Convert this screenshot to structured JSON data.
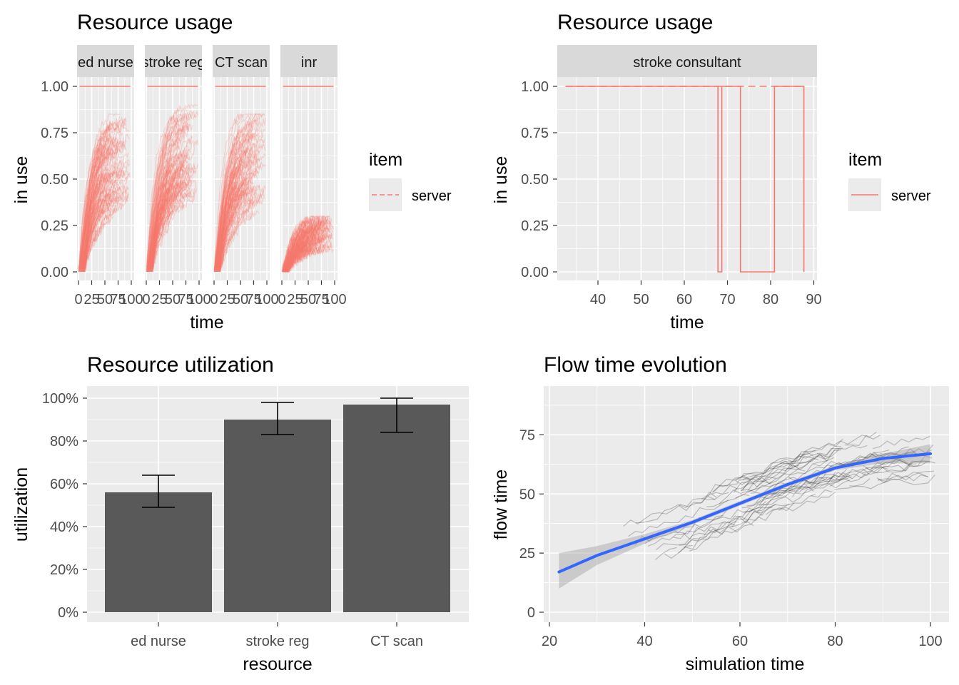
{
  "chart_data": [
    {
      "type": "line",
      "title": "Resource usage",
      "xlabel": "time",
      "ylabel": "in use",
      "xlim": [
        0,
        100
      ],
      "ylim": [
        0,
        1
      ],
      "yticks": [
        "0.00",
        "0.25",
        "0.50",
        "0.75",
        "1.00"
      ],
      "xticks": [
        "0",
        "25",
        "50",
        "75",
        "100"
      ],
      "facets": [
        {
          "name": "ed nurse",
          "capacity": 1,
          "peak": 0.85
        },
        {
          "name": "stroke reg",
          "capacity": 1,
          "peak": 0.9
        },
        {
          "name": "CT scan",
          "capacity": 1,
          "peak": 0.85
        },
        {
          "name": "inr",
          "capacity": 1,
          "peak": 0.3
        }
      ],
      "legend": {
        "title": "item",
        "entries": [
          "server"
        ],
        "position": "right"
      },
      "color": "#F8766D"
    },
    {
      "type": "line",
      "title": "Resource usage",
      "xlabel": "time",
      "ylabel": "in use",
      "xlim": [
        32,
        90
      ],
      "ylim": [
        0,
        1
      ],
      "yticks": [
        "0.00",
        "0.25",
        "0.50",
        "0.75",
        "1.00"
      ],
      "xticks": [
        "40",
        "50",
        "60",
        "70",
        "80",
        "90"
      ],
      "facets": [
        {
          "name": "stroke consultant"
        }
      ],
      "series": [
        {
          "name": "server",
          "x": [
            32.5,
            67.8,
            67.8,
            68.7,
            68.7,
            73.0,
            73.0,
            80.9,
            80.9,
            87.7,
            87.7
          ],
          "y": [
            1,
            1,
            0,
            0,
            1,
            1,
            0,
            0,
            1,
            1,
            0
          ]
        }
      ],
      "legend": {
        "title": "item",
        "entries": [
          "server"
        ],
        "position": "right"
      },
      "color": "#F8766D"
    },
    {
      "type": "bar",
      "title": "Resource utilization",
      "xlabel": "resource",
      "ylabel": "utilization",
      "categories": [
        "ed nurse",
        "stroke reg",
        "CT scan"
      ],
      "values": [
        0.56,
        0.9,
        0.97
      ],
      "err_low": [
        0.49,
        0.83,
        0.84
      ],
      "err_high": [
        0.64,
        0.98,
        1.0
      ],
      "ylim": [
        0,
        1
      ],
      "yticks": [
        "0%",
        "20%",
        "40%",
        "60%",
        "80%",
        "100%"
      ],
      "color": "#595959"
    },
    {
      "type": "line",
      "title": "Flow time evolution",
      "xlabel": "simulation time",
      "ylabel": "flow time",
      "xlim": [
        20,
        100
      ],
      "ylim": [
        0,
        90
      ],
      "xticks": [
        "20",
        "40",
        "60",
        "80",
        "100"
      ],
      "yticks": [
        "0",
        "25",
        "50",
        "75"
      ],
      "smooth": {
        "x": [
          22,
          30,
          40,
          50,
          60,
          70,
          80,
          90,
          100
        ],
        "y": [
          17,
          24,
          31,
          38,
          46,
          54,
          61,
          65,
          67
        ],
        "color": "#3366FF"
      },
      "band_low": [
        10,
        20,
        29,
        37,
        45,
        53,
        60,
        63,
        63
      ],
      "band_high": [
        25,
        28,
        33,
        39,
        47,
        55,
        62,
        67,
        71
      ]
    }
  ]
}
